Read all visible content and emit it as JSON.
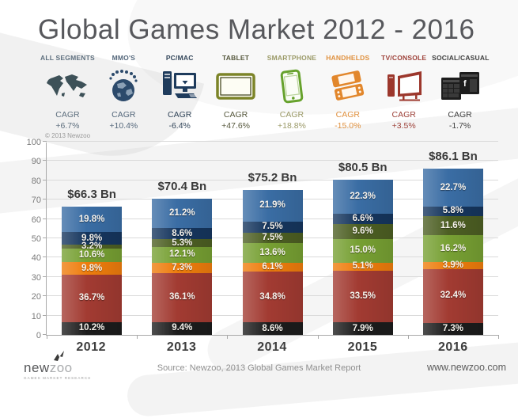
{
  "page": {
    "title": "Global Games Market 2012 - 2016",
    "copyright": "© 2013 Newzoo"
  },
  "cagr_word": "CAGR",
  "segments": [
    {
      "label": "ALL SEGMENTS",
      "cagr": "+6.7%",
      "color": "#5e6f7e",
      "icon": "world-map-icon"
    },
    {
      "label": "MMO'S",
      "cagr": "+10.4%",
      "color": "#54677b",
      "icon": "globe-players-icon"
    },
    {
      "label": "PC/MAC",
      "cagr": "-6.4%",
      "color": "#33465a",
      "icon": "desktop-computer-icon"
    },
    {
      "label": "TABLET",
      "cagr": "+47.6%",
      "color": "#56583d",
      "icon": "tablet-icon"
    },
    {
      "label": "SMARTPHONE",
      "cagr": "+18.8%",
      "color": "#9b9a68",
      "icon": "smartphone-icon"
    },
    {
      "label": "HANDHELDS",
      "cagr": "-15.0%",
      "color": "#e0913f",
      "icon": "handheld-console-icon"
    },
    {
      "label": "TV/CONSOLE",
      "cagr": "+3.5%",
      "color": "#9e423a",
      "icon": "tv-console-icon"
    },
    {
      "label": "SOCIAL/CASUAL",
      "cagr": "-1.7%",
      "color": "#3f3f3f",
      "icon": "social-windows-icon"
    }
  ],
  "chart_data": {
    "type": "bar",
    "stacked": true,
    "title": "Global Games Market 2012 - 2016",
    "categories": [
      "2012",
      "2013",
      "2014",
      "2015",
      "2016"
    ],
    "totals_label": [
      "$66.3 Bn",
      "$70.4 Bn",
      "$75.2 Bn",
      "$80.5 Bn",
      "$86.1 Bn"
    ],
    "totals_value_bn": [
      66.3,
      70.4,
      75.2,
      80.5,
      86.1
    ],
    "ylim": [
      0,
      100
    ],
    "yticks": [
      0,
      10,
      20,
      30,
      40,
      50,
      60,
      70,
      80,
      90,
      100
    ],
    "grid": "horizontal",
    "series_order": "bottom-to-top",
    "series": [
      {
        "name": "Social/Casual",
        "color": "#1c1c1c",
        "share_pct": [
          10.2,
          9.4,
          8.6,
          7.9,
          7.3
        ]
      },
      {
        "name": "TV/Console",
        "color": "#a23b32",
        "share_pct": [
          36.7,
          36.1,
          34.8,
          33.5,
          32.4
        ]
      },
      {
        "name": "Handhelds",
        "color": "#ee7d0d",
        "share_pct": [
          9.8,
          7.3,
          6.1,
          5.1,
          3.9
        ]
      },
      {
        "name": "Smartphone",
        "color": "#77a033",
        "share_pct": [
          10.6,
          12.1,
          13.6,
          15.0,
          16.2
        ]
      },
      {
        "name": "Tablet",
        "color": "#4d5f23",
        "share_pct": [
          3.2,
          5.3,
          7.5,
          9.6,
          11.6
        ]
      },
      {
        "name": "PC/MAC",
        "color": "#16365e",
        "share_pct": [
          9.8,
          8.6,
          7.5,
          6.6,
          5.8
        ]
      },
      {
        "name": "MMO's",
        "color": "#3a6da4",
        "share_pct": [
          19.8,
          21.2,
          21.9,
          22.3,
          22.7
        ]
      }
    ]
  },
  "footer": {
    "logo_new": "new",
    "logo_zoo": "zoo",
    "logo_tagline": "GAMES MARKET RESEARCH",
    "source": "Source: Newzoo, 2013 Global Games Market Report",
    "website": "www.newzoo.com"
  }
}
